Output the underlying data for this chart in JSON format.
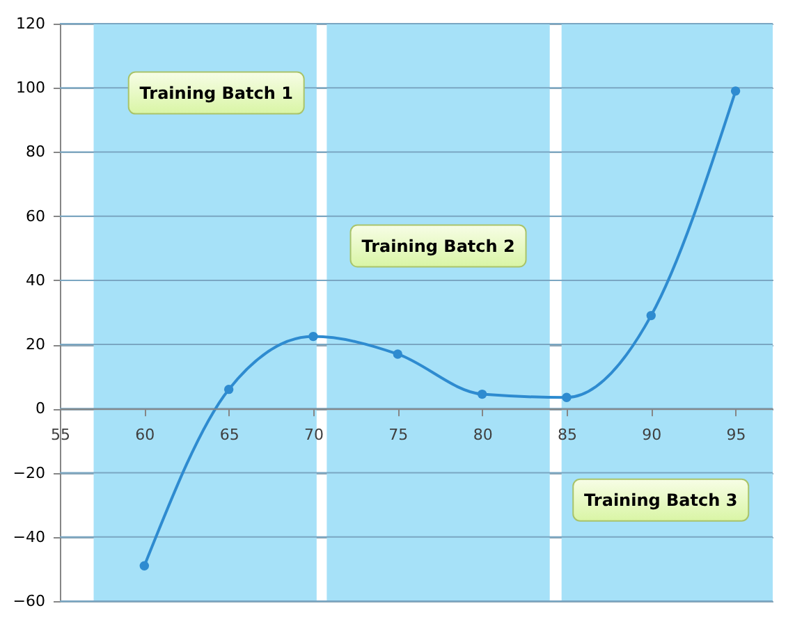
{
  "chart_data": {
    "type": "line",
    "x": [
      60,
      65,
      70,
      75,
      80,
      85,
      90,
      95
    ],
    "series": [
      {
        "color": "#2e8bd0",
        "values": [
          -49,
          6,
          22.5,
          17,
          4.5,
          3.5,
          29,
          99
        ]
      }
    ],
    "xlim": [
      55,
      97.2
    ],
    "xticks": [
      55,
      60,
      65,
      70,
      75,
      80,
      85,
      90,
      95
    ],
    "ylim": [
      -60,
      120
    ],
    "yticks": [
      -60,
      -40,
      -20,
      0,
      20,
      40,
      60,
      80,
      100,
      120
    ],
    "grid": "y",
    "marker": "circle",
    "line_style": "solid",
    "bands": [
      {
        "axis": "x",
        "from": 57,
        "to": 70.2,
        "label": "Training Batch 1",
        "color": "#a6e1f8"
      },
      {
        "axis": "x",
        "from": 70.8,
        "to": 84,
        "label": "Training Batch 2",
        "color": "#a6e1f8"
      },
      {
        "axis": "x",
        "from": 84.7,
        "to": 97.2,
        "label": "Training Batch 3",
        "color": "#a6e1f8"
      }
    ]
  }
}
